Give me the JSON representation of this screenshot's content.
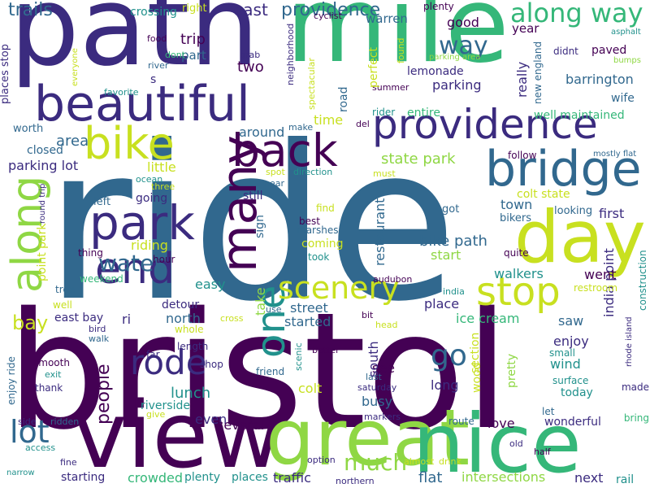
{
  "palette": {
    "dark_purple": "#440154",
    "indigo": "#3b2b7f",
    "blue": "#31688e",
    "teal": "#21918c",
    "green": "#35b779",
    "lime": "#8fd744",
    "yellow": "#c8e020",
    "background": "#ffffff"
  },
  "words": [
    {
      "text": "ride",
      "color": "#31688e"
    },
    {
      "text": "bristol",
      "color": "#440154"
    },
    {
      "text": "path",
      "color": "#3b2b7f"
    },
    {
      "text": "mile",
      "color": "#35b779"
    },
    {
      "text": "view",
      "color": "#440154"
    },
    {
      "text": "great",
      "color": "#8fd744"
    },
    {
      "text": "nice",
      "color": "#35b779"
    },
    {
      "text": "day",
      "color": "#c8e020"
    },
    {
      "text": "beautiful",
      "color": "#3b2b7f"
    },
    {
      "text": "providence",
      "color": "#3b2b7f"
    },
    {
      "text": "bridge",
      "color": "#31688e"
    },
    {
      "text": "back",
      "color": "#440154"
    },
    {
      "text": "park",
      "color": "#3b2b7f"
    },
    {
      "text": "bike",
      "color": "#c8e020"
    },
    {
      "text": "end",
      "color": "#3b2b7f"
    },
    {
      "text": "stop",
      "color": "#c8e020"
    },
    {
      "text": "many",
      "color": "#440154"
    },
    {
      "text": "along",
      "color": "#8fd744"
    },
    {
      "text": "one",
      "color": "#21918c"
    },
    {
      "text": "rode",
      "color": "#3b2b7f"
    },
    {
      "text": "scenery",
      "color": "#c8e020"
    },
    {
      "text": "along way",
      "color": "#35b779"
    },
    {
      "text": "way",
      "color": "#31688e"
    },
    {
      "text": "lot",
      "color": "#31688e"
    },
    {
      "text": "water",
      "color": "#31688e"
    },
    {
      "text": "much",
      "color": "#8fd744"
    },
    {
      "text": "go",
      "color": "#31688e"
    },
    {
      "text": "trails",
      "color": "#31688e"
    },
    {
      "text": "providence",
      "color": "#31688e"
    },
    {
      "text": "east",
      "color": "#3b2b7f"
    },
    {
      "text": "trip",
      "color": "#440154"
    },
    {
      "text": "two",
      "color": "#440154"
    },
    {
      "text": "part",
      "color": "#31688e"
    },
    {
      "text": "crossing",
      "color": "#21918c"
    },
    {
      "text": "right",
      "color": "#c8e020"
    },
    {
      "text": "warren",
      "color": "#31688e"
    },
    {
      "text": "cyclist",
      "color": "#440154"
    },
    {
      "text": "plenty",
      "color": "#440154"
    },
    {
      "text": "good",
      "color": "#440154"
    },
    {
      "text": "year",
      "color": "#440154"
    },
    {
      "text": "parking area",
      "color": "#8fd744"
    },
    {
      "text": "asphalt",
      "color": "#21918c"
    },
    {
      "text": "didnt",
      "color": "#3b2b7f"
    },
    {
      "text": "paved",
      "color": "#440154"
    },
    {
      "text": "bumps",
      "color": "#8fd744"
    },
    {
      "text": "barrington",
      "color": "#31688e"
    },
    {
      "text": "wife",
      "color": "#31688e"
    },
    {
      "text": "lemonade",
      "color": "#3b2b7f"
    },
    {
      "text": "parking",
      "color": "#3b2b7f"
    },
    {
      "text": "really",
      "color": "#3b2b7f"
    },
    {
      "text": "new england",
      "color": "#31688e"
    },
    {
      "text": "well maintained",
      "color": "#35b779"
    },
    {
      "text": "entire",
      "color": "#35b779"
    },
    {
      "text": "rider",
      "color": "#21918c"
    },
    {
      "text": "time",
      "color": "#c8e020"
    },
    {
      "text": "del",
      "color": "#440154"
    },
    {
      "text": "summer",
      "color": "#440154"
    },
    {
      "text": "found",
      "color": "#c8e020"
    },
    {
      "text": "perfect",
      "color": "#c8e020"
    },
    {
      "text": "road",
      "color": "#31688e"
    },
    {
      "text": "spectacular",
      "color": "#c8e020"
    },
    {
      "text": "make",
      "color": "#31688e"
    },
    {
      "text": "neighborhood",
      "color": "#3b2b7f"
    },
    {
      "text": "grab",
      "color": "#3b2b7f"
    },
    {
      "text": "food",
      "color": "#440154"
    },
    {
      "text": "dont",
      "color": "#35b779"
    },
    {
      "text": "river",
      "color": "#31688e"
    },
    {
      "text": "favorite",
      "color": "#21918c"
    },
    {
      "text": "everyone",
      "color": "#c8e020"
    },
    {
      "text": "s",
      "color": "#3b2b7f"
    },
    {
      "text": "places stop",
      "color": "#3b2b7f"
    },
    {
      "text": "worth",
      "color": "#31688e"
    },
    {
      "text": "closed",
      "color": "#31688e"
    },
    {
      "text": "area",
      "color": "#31688e"
    },
    {
      "text": "parking lot",
      "color": "#3b2b7f"
    },
    {
      "text": "around",
      "color": "#31688e"
    },
    {
      "text": "little",
      "color": "#c8e020"
    },
    {
      "text": "state park",
      "color": "#8fd744"
    },
    {
      "text": "follow",
      "color": "#440154"
    },
    {
      "text": "mostly flat",
      "color": "#31688e"
    },
    {
      "text": "colt state",
      "color": "#c8e020"
    },
    {
      "text": "town",
      "color": "#31688e"
    },
    {
      "text": "bikers",
      "color": "#31688e"
    },
    {
      "text": "looking",
      "color": "#31688e"
    },
    {
      "text": "first",
      "color": "#3b2b7f"
    },
    {
      "text": "restaurant",
      "color": "#31688e"
    },
    {
      "text": "india point",
      "color": "#3b2b7f"
    },
    {
      "text": "bike path",
      "color": "#31688e"
    },
    {
      "text": "start",
      "color": "#8fd744"
    },
    {
      "text": "quite",
      "color": "#440154"
    },
    {
      "text": "walkers",
      "color": "#21918c"
    },
    {
      "text": "went",
      "color": "#440154"
    },
    {
      "text": "construction",
      "color": "#21918c"
    },
    {
      "text": "restroom",
      "color": "#c8e020"
    },
    {
      "text": "got",
      "color": "#31688e"
    },
    {
      "text": "find",
      "color": "#c8e020"
    },
    {
      "text": "best",
      "color": "#440154"
    },
    {
      "text": "marshes",
      "color": "#31688e"
    },
    {
      "text": "coming",
      "color": "#c8e020"
    },
    {
      "text": "took",
      "color": "#21918c"
    },
    {
      "text": "audubon",
      "color": "#440154"
    },
    {
      "text": "india",
      "color": "#21918c"
    },
    {
      "text": "still",
      "color": "#3b2b7f"
    },
    {
      "text": "near",
      "color": "#31688e"
    },
    {
      "text": "sign",
      "color": "#31688e"
    },
    {
      "text": "spot",
      "color": "#c8e020"
    },
    {
      "text": "direction",
      "color": "#21918c"
    },
    {
      "text": "must",
      "color": "#c8e020"
    },
    {
      "text": "ocean",
      "color": "#21918c"
    },
    {
      "text": "three",
      "color": "#c8e020"
    },
    {
      "text": "left",
      "color": "#31688e"
    },
    {
      "text": "going",
      "color": "#3b2b7f"
    },
    {
      "text": "riding",
      "color": "#c8e020"
    },
    {
      "text": "round trip",
      "color": "#3b2b7f"
    },
    {
      "text": "point park",
      "color": "#c8e020"
    },
    {
      "text": "thing",
      "color": "#440154"
    },
    {
      "text": "hour",
      "color": "#440154"
    },
    {
      "text": "weekend",
      "color": "#35b779"
    },
    {
      "text": "tree",
      "color": "#31688e"
    },
    {
      "text": "well",
      "color": "#c8e020"
    },
    {
      "text": "east bay",
      "color": "#3b2b7f"
    },
    {
      "text": "bay",
      "color": "#c8e020"
    },
    {
      "text": "bird",
      "color": "#3b2b7f"
    },
    {
      "text": "walk",
      "color": "#31688e"
    },
    {
      "text": "ri",
      "color": "#3b2b7f"
    },
    {
      "text": "easy",
      "color": "#21918c"
    },
    {
      "text": "detour",
      "color": "#3b2b7f"
    },
    {
      "text": "north",
      "color": "#31688e"
    },
    {
      "text": "whole",
      "color": "#c8e020"
    },
    {
      "text": "take",
      "color": "#8fd744"
    },
    {
      "text": "use",
      "color": "#31688e"
    },
    {
      "text": "cross",
      "color": "#c8e020"
    },
    {
      "text": "street",
      "color": "#31688e"
    },
    {
      "text": "started",
      "color": "#31688e"
    },
    {
      "text": "place",
      "color": "#3b2b7f"
    },
    {
      "text": "ice cream",
      "color": "#35b779"
    },
    {
      "text": "bit",
      "color": "#440154"
    },
    {
      "text": "head",
      "color": "#c8e020"
    },
    {
      "text": "saw",
      "color": "#31688e"
    },
    {
      "text": "enjoy",
      "color": "#3b2b7f"
    },
    {
      "text": "small",
      "color": "#21918c"
    },
    {
      "text": "wind",
      "color": "#21918c"
    },
    {
      "text": "rhode island",
      "color": "#3b2b7f"
    },
    {
      "text": "surface",
      "color": "#21918c"
    },
    {
      "text": "made",
      "color": "#3b2b7f"
    },
    {
      "text": "today",
      "color": "#21918c"
    },
    {
      "text": "let",
      "color": "#31688e"
    },
    {
      "text": "bring",
      "color": "#35b779"
    },
    {
      "text": "wonderful",
      "color": "#3b2b7f"
    },
    {
      "text": "pretty",
      "color": "#8fd744"
    },
    {
      "text": "section",
      "color": "#c8e020"
    },
    {
      "text": "see",
      "color": "#440154"
    },
    {
      "text": "last",
      "color": "#31688e"
    },
    {
      "text": "saturday",
      "color": "#3b2b7f"
    },
    {
      "text": "long",
      "color": "#3b2b7f"
    },
    {
      "text": "busy",
      "color": "#31688e"
    },
    {
      "text": "wood",
      "color": "#c8e020"
    },
    {
      "text": "markers",
      "color": "#3b2b7f"
    },
    {
      "text": "route",
      "color": "#31688e"
    },
    {
      "text": "love",
      "color": "#440154"
    },
    {
      "text": "south",
      "color": "#3b2b7f"
    },
    {
      "text": "scenic",
      "color": "#21918c"
    },
    {
      "text": "better",
      "color": "#440154"
    },
    {
      "text": "friend",
      "color": "#31688e"
    },
    {
      "text": "colt",
      "color": "#c8e020"
    },
    {
      "text": "lunch",
      "color": "#21918c"
    },
    {
      "text": "people",
      "color": "#440154"
    },
    {
      "text": "far",
      "color": "#3b2b7f"
    },
    {
      "text": "length",
      "color": "#3b2b7f"
    },
    {
      "text": "shop",
      "color": "#3b2b7f"
    },
    {
      "text": "riverside",
      "color": "#21918c"
    },
    {
      "text": "give",
      "color": "#c8e020"
    },
    {
      "text": "even",
      "color": "#3b2b7f"
    },
    {
      "text": "several",
      "color": "#440154"
    },
    {
      "text": "smooth",
      "color": "#440154"
    },
    {
      "text": "exit",
      "color": "#21918c"
    },
    {
      "text": "thank",
      "color": "#3b2b7f"
    },
    {
      "text": "enjoy ride",
      "color": "#31688e"
    },
    {
      "text": "side",
      "color": "#3b2b7f"
    },
    {
      "text": "ridden",
      "color": "#31688e"
    },
    {
      "text": "access",
      "color": "#21918c"
    },
    {
      "text": "narrow",
      "color": "#21918c"
    },
    {
      "text": "fine",
      "color": "#3b2b7f"
    },
    {
      "text": "starting",
      "color": "#3b2b7f"
    },
    {
      "text": "crowded",
      "color": "#35b779"
    },
    {
      "text": "plenty",
      "color": "#21918c"
    },
    {
      "text": "places",
      "color": "#21918c"
    },
    {
      "text": "traffic",
      "color": "#3b2b7f"
    },
    {
      "text": "option",
      "color": "#3b2b7f"
    },
    {
      "text": "northern",
      "color": "#3b2b7f"
    },
    {
      "text": "almost",
      "color": "#c8e020"
    },
    {
      "text": "drink",
      "color": "#c8e020"
    },
    {
      "text": "flat",
      "color": "#31688e"
    },
    {
      "text": "intersections",
      "color": "#8fd744"
    },
    {
      "text": "old",
      "color": "#3b2b7f"
    },
    {
      "text": "half",
      "color": "#440154"
    },
    {
      "text": "next",
      "color": "#3b2b7f"
    },
    {
      "text": "rail",
      "color": "#21918c"
    }
  ]
}
